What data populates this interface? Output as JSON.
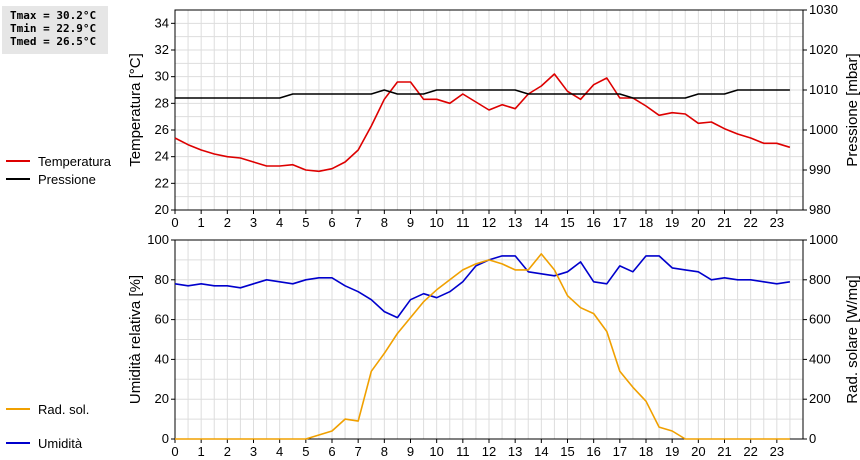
{
  "stats": {
    "tmax": "Tmax = 30.2°C",
    "tmin": "Tmin = 22.9°C",
    "tmed": "Tmed = 26.5°C"
  },
  "legend": {
    "top": [
      {
        "label": "Temperatura",
        "color": "#dd0000"
      },
      {
        "label": "Pressione",
        "color": "#000000"
      }
    ],
    "bottom": [
      {
        "label": "Umidità",
        "color": "#0000cc"
      },
      {
        "label": "Rad. sol.",
        "color": "#f0a000"
      }
    ]
  },
  "chart_data": [
    {
      "type": "line",
      "ylabel": "Temperatura [°C]",
      "ylabel_right": "Pressione [mbar]",
      "xlim": [
        0,
        24
      ],
      "xticks": [
        "0",
        "1",
        "2",
        "3",
        "4",
        "5",
        "6",
        "7",
        "8",
        "9",
        "10",
        "11",
        "12",
        "13",
        "14",
        "15",
        "16",
        "17",
        "18",
        "19",
        "20",
        "21",
        "22",
        "23"
      ],
      "ylim": [
        20,
        35
      ],
      "yticks": [
        "20",
        "22",
        "24",
        "26",
        "28",
        "30",
        "32",
        "34"
      ],
      "ylim_right": [
        980,
        1030
      ],
      "yticks_right": [
        "980",
        "990",
        "1000",
        "1010",
        "1020",
        "1030"
      ],
      "grid": true,
      "series": [
        {
          "name": "Temperatura",
          "axis": "left",
          "color": "#dd0000",
          "x": [
            0,
            0.5,
            1,
            1.5,
            2,
            2.5,
            3,
            3.5,
            4,
            4.5,
            5,
            5.5,
            6,
            6.5,
            7,
            7.5,
            8,
            8.5,
            9,
            9.5,
            10,
            10.5,
            11,
            11.5,
            12,
            12.5,
            13,
            13.5,
            14,
            14.5,
            15,
            15.5,
            16,
            16.5,
            17,
            17.5,
            18,
            18.5,
            19,
            19.5,
            20,
            20.5,
            21,
            21.5,
            22,
            22.5,
            23,
            23.5
          ],
          "values": [
            25.4,
            24.9,
            24.5,
            24.2,
            24.0,
            23.9,
            23.6,
            23.3,
            23.3,
            23.4,
            23.0,
            22.9,
            23.1,
            23.6,
            24.5,
            26.3,
            28.3,
            29.6,
            29.6,
            28.3,
            28.3,
            28.0,
            28.7,
            28.1,
            27.5,
            27.9,
            27.6,
            28.7,
            29.3,
            30.2,
            28.9,
            28.3,
            29.4,
            29.9,
            28.4,
            28.4,
            27.8,
            27.1,
            27.3,
            27.2,
            26.5,
            26.6,
            26.1,
            25.7,
            25.4,
            25.0,
            25.0,
            24.7
          ]
        },
        {
          "name": "Pressione",
          "axis": "right",
          "color": "#000000",
          "x": [
            0,
            0.5,
            1,
            1.5,
            2,
            2.5,
            3,
            3.5,
            4,
            4.5,
            5,
            5.5,
            6,
            6.5,
            7,
            7.5,
            8,
            8.5,
            9,
            9.5,
            10,
            10.5,
            11,
            11.5,
            12,
            12.5,
            13,
            13.5,
            14,
            14.5,
            15,
            15.5,
            16,
            16.5,
            17,
            17.5,
            18,
            18.5,
            19,
            19.5,
            20,
            20.5,
            21,
            21.5,
            22,
            22.5,
            23,
            23.5
          ],
          "values": [
            1008,
            1008,
            1008,
            1008,
            1008,
            1008,
            1008,
            1008,
            1008,
            1009,
            1009,
            1009,
            1009,
            1009,
            1009,
            1009,
            1010,
            1009,
            1009,
            1009,
            1010,
            1010,
            1010,
            1010,
            1010,
            1010,
            1010,
            1009,
            1009,
            1009,
            1009,
            1009,
            1009,
            1009,
            1009,
            1008,
            1008,
            1008,
            1008,
            1008,
            1009,
            1009,
            1009,
            1010,
            1010,
            1010,
            1010,
            1010
          ]
        }
      ]
    },
    {
      "type": "line",
      "ylabel": "Umidità relativa [%]",
      "ylabel_right": "Rad. solare [W/mq]",
      "xlim": [
        0,
        24
      ],
      "xticks": [
        "0",
        "1",
        "2",
        "3",
        "4",
        "5",
        "6",
        "7",
        "8",
        "9",
        "10",
        "11",
        "12",
        "13",
        "14",
        "15",
        "16",
        "17",
        "18",
        "19",
        "20",
        "21",
        "22",
        "23"
      ],
      "ylim": [
        0,
        100
      ],
      "yticks": [
        "0",
        "20",
        "40",
        "60",
        "80",
        "100"
      ],
      "ylim_right": [
        0,
        1000
      ],
      "yticks_right": [
        "0",
        "200",
        "400",
        "600",
        "800",
        "1000"
      ],
      "grid": true,
      "series": [
        {
          "name": "Umidità",
          "axis": "left",
          "color": "#0000cc",
          "x": [
            0,
            0.5,
            1,
            1.5,
            2,
            2.5,
            3,
            3.5,
            4,
            4.5,
            5,
            5.5,
            6,
            6.5,
            7,
            7.5,
            8,
            8.5,
            9,
            9.5,
            10,
            10.5,
            11,
            11.5,
            12,
            12.5,
            13,
            13.5,
            14,
            14.5,
            15,
            15.5,
            16,
            16.5,
            17,
            17.5,
            18,
            18.5,
            19,
            19.5,
            20,
            20.5,
            21,
            21.5,
            22,
            22.5,
            23,
            23.5
          ],
          "values": [
            78,
            77,
            78,
            77,
            77,
            76,
            78,
            80,
            79,
            78,
            80,
            81,
            81,
            77,
            74,
            70,
            64,
            61,
            70,
            73,
            71,
            74,
            79,
            87,
            90,
            92,
            92,
            84,
            83,
            82,
            84,
            89,
            79,
            78,
            87,
            84,
            92,
            92,
            86,
            85,
            84,
            80,
            81,
            80,
            80,
            79,
            78,
            79
          ]
        },
        {
          "name": "Rad. sol.",
          "axis": "right",
          "color": "#f0a000",
          "x": [
            0,
            0.5,
            1,
            1.5,
            2,
            2.5,
            3,
            3.5,
            4,
            4.5,
            5,
            5.5,
            6,
            6.5,
            7,
            7.5,
            8,
            8.5,
            9,
            9.5,
            10,
            10.5,
            11,
            11.5,
            12,
            12.5,
            13,
            13.5,
            14,
            14.5,
            15,
            15.5,
            16,
            16.5,
            17,
            17.5,
            18,
            18.5,
            19,
            19.5,
            20,
            20.5,
            21,
            21.5,
            22,
            22.5,
            23,
            23.5
          ],
          "values": [
            0,
            0,
            0,
            0,
            0,
            0,
            0,
            0,
            0,
            0,
            0,
            20,
            40,
            100,
            90,
            340,
            430,
            530,
            610,
            690,
            750,
            800,
            850,
            880,
            900,
            880,
            850,
            850,
            930,
            850,
            720,
            660,
            630,
            540,
            340,
            260,
            190,
            60,
            40,
            0,
            0,
            0,
            0,
            0,
            0,
            0,
            0,
            0
          ]
        }
      ]
    }
  ]
}
